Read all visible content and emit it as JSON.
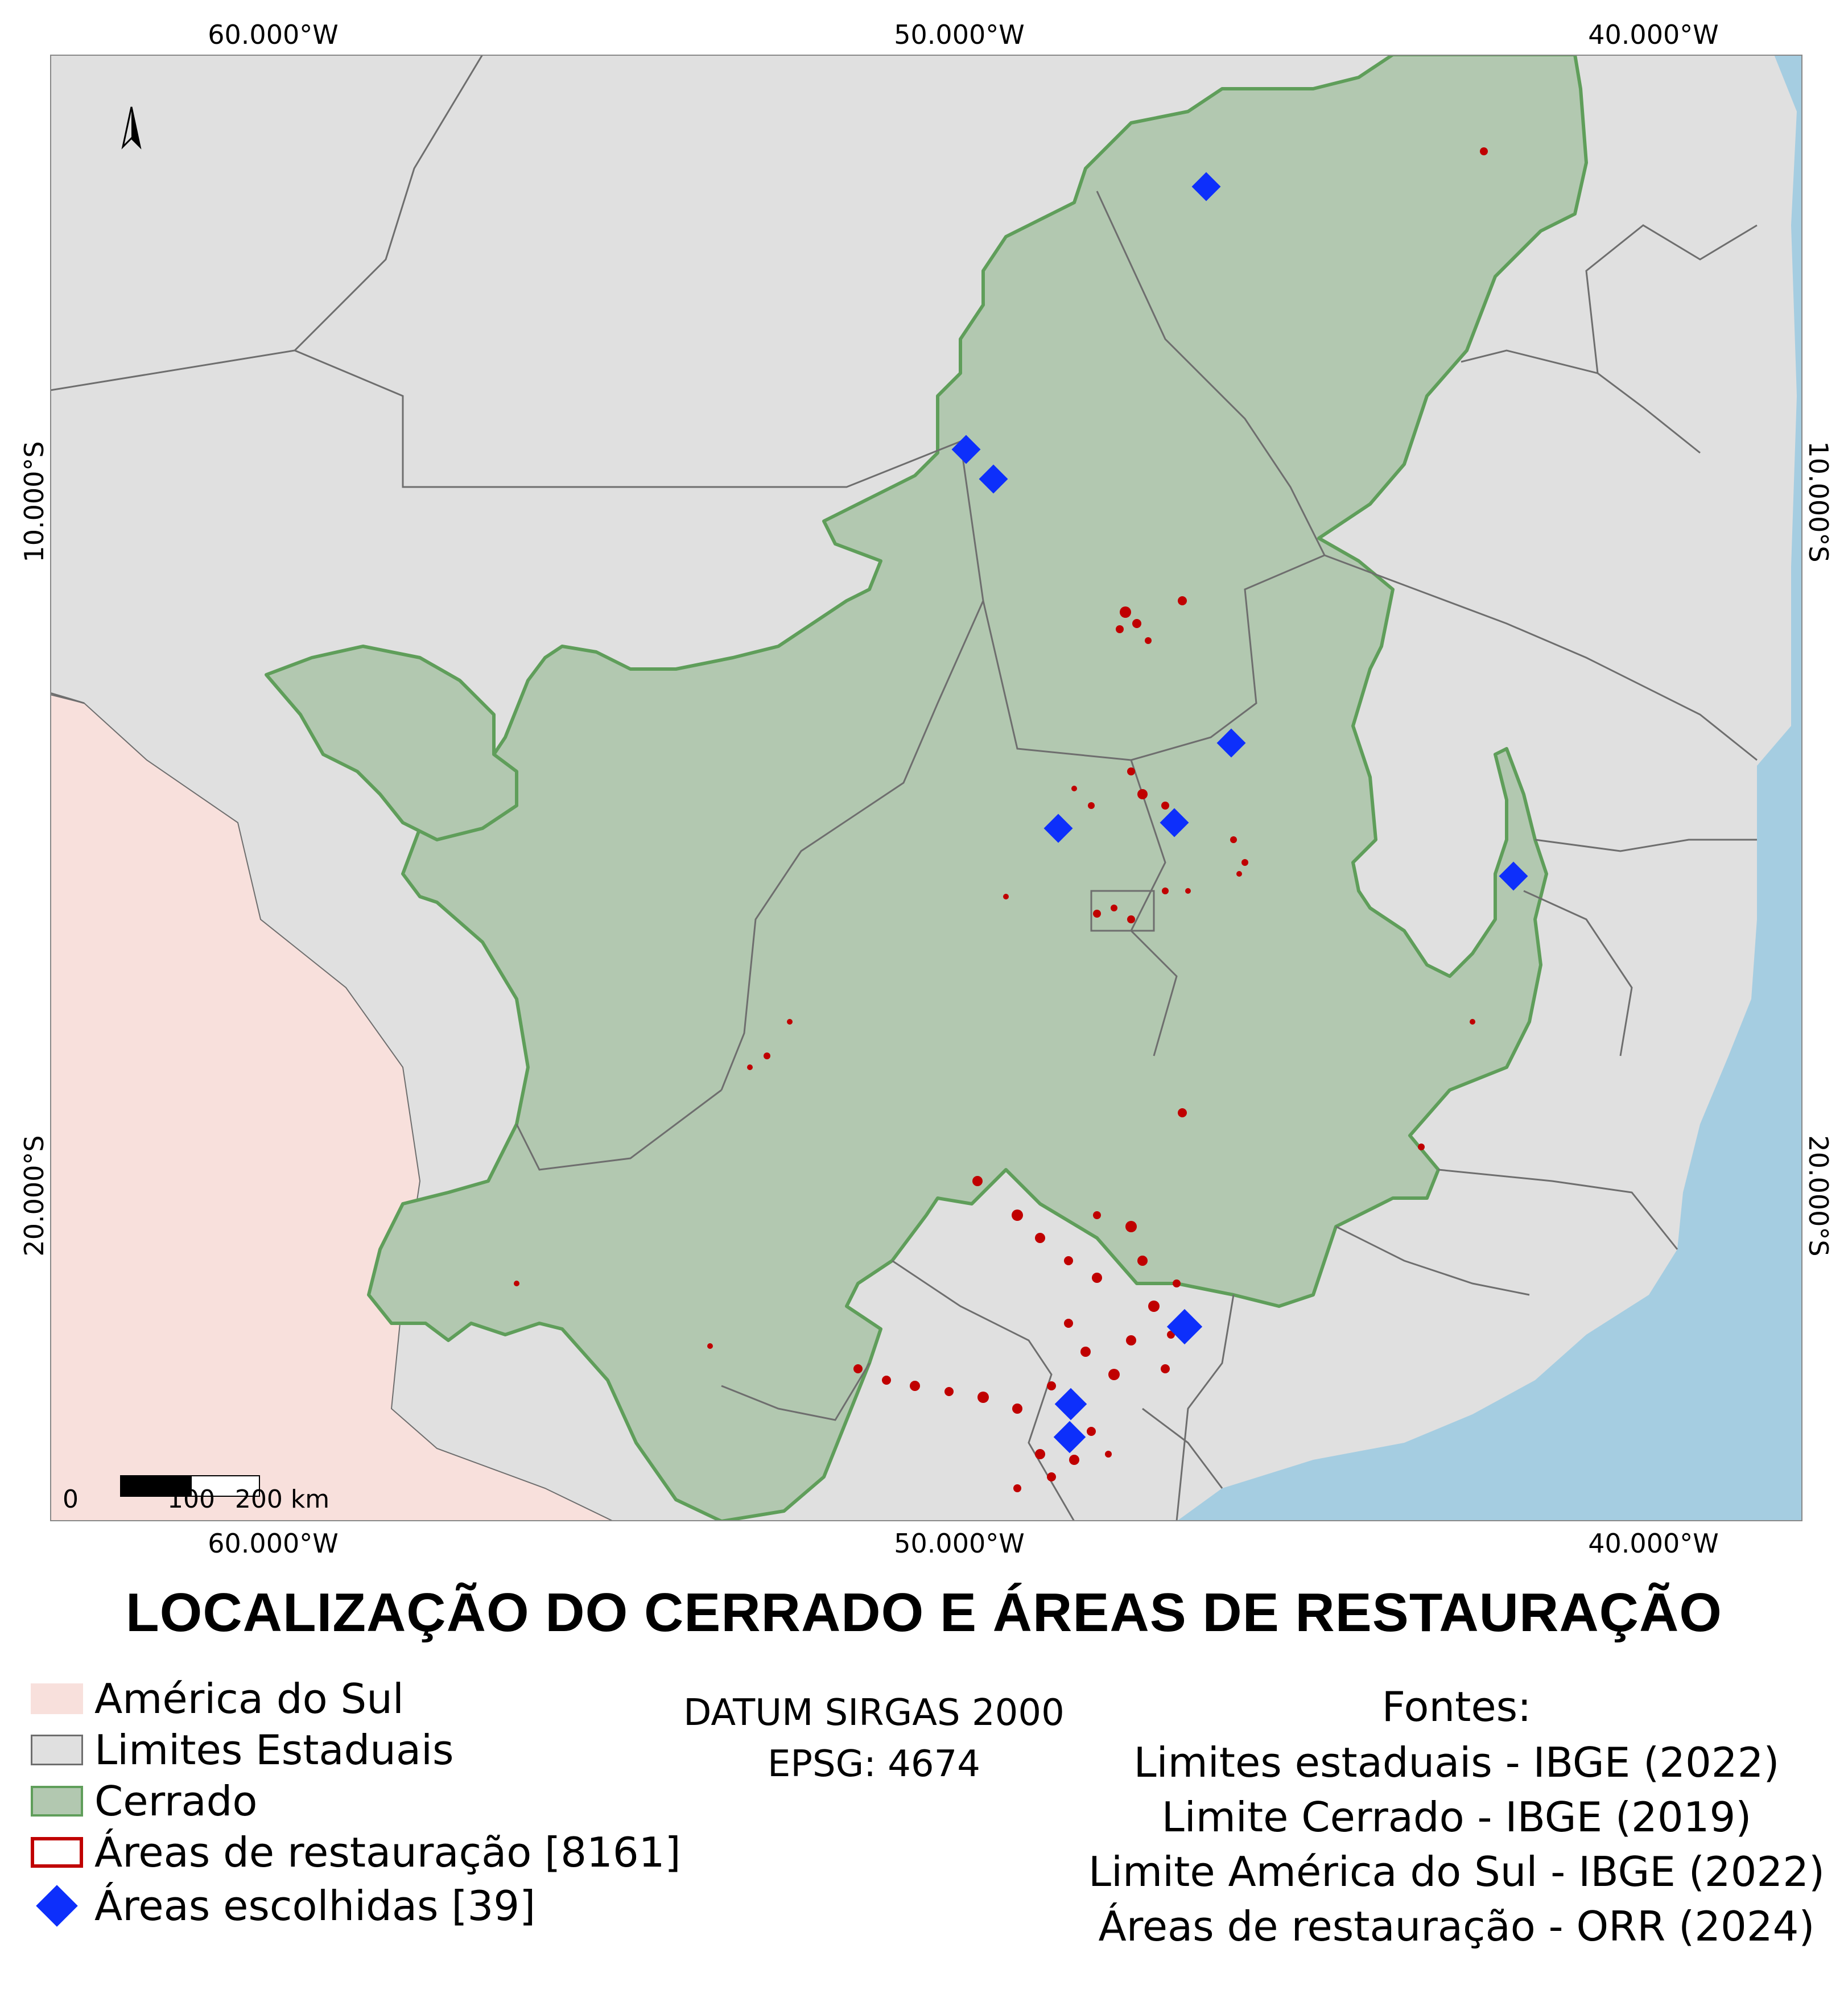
{
  "map": {
    "title": "LOCALIZAÇÃO DO CERRADO E ÁREAS DE RESTAURAÇÃO",
    "coords": {
      "top": [
        "60.000°W",
        "50.000°W",
        "40.000°W"
      ],
      "bottom": [
        "60.000°W",
        "50.000°W",
        "40.000°W"
      ],
      "left": [
        "10.000°S",
        "20.000°S"
      ],
      "right": [
        "10.000°S",
        "20.000°S"
      ]
    },
    "scale": {
      "labels": [
        "0",
        "100",
        "200 km"
      ]
    },
    "north_arrow": "north-arrow-icon",
    "colors": {
      "south_america": "#f8e0dc",
      "states": "#e0e0e0",
      "state_border": "#6e6e6e",
      "cerrado": "#b2c8b0",
      "cerrado_border": "#5f9e5a",
      "restoration": "#c00000",
      "chosen": "#0d2ffb",
      "ocean": "#a5cde1"
    }
  },
  "legend": {
    "items": [
      {
        "label": "América do Sul"
      },
      {
        "label": "Limites Estaduais"
      },
      {
        "label": "Cerrado"
      },
      {
        "label": "Áreas de restauração [8161]"
      },
      {
        "label": "Áreas escolhidas [39]"
      }
    ]
  },
  "datum": {
    "line1": "DATUM SIRGAS 2000",
    "line2": "EPSG: 4674"
  },
  "sources": {
    "heading": "Fontes:",
    "lines": [
      "Limites estaduais - IBGE (2022)",
      "Limite Cerrado - IBGE (2019)",
      "Limite América do Sul - IBGE (2022)",
      "Áreas de restauração - ORR (2024)"
    ]
  }
}
